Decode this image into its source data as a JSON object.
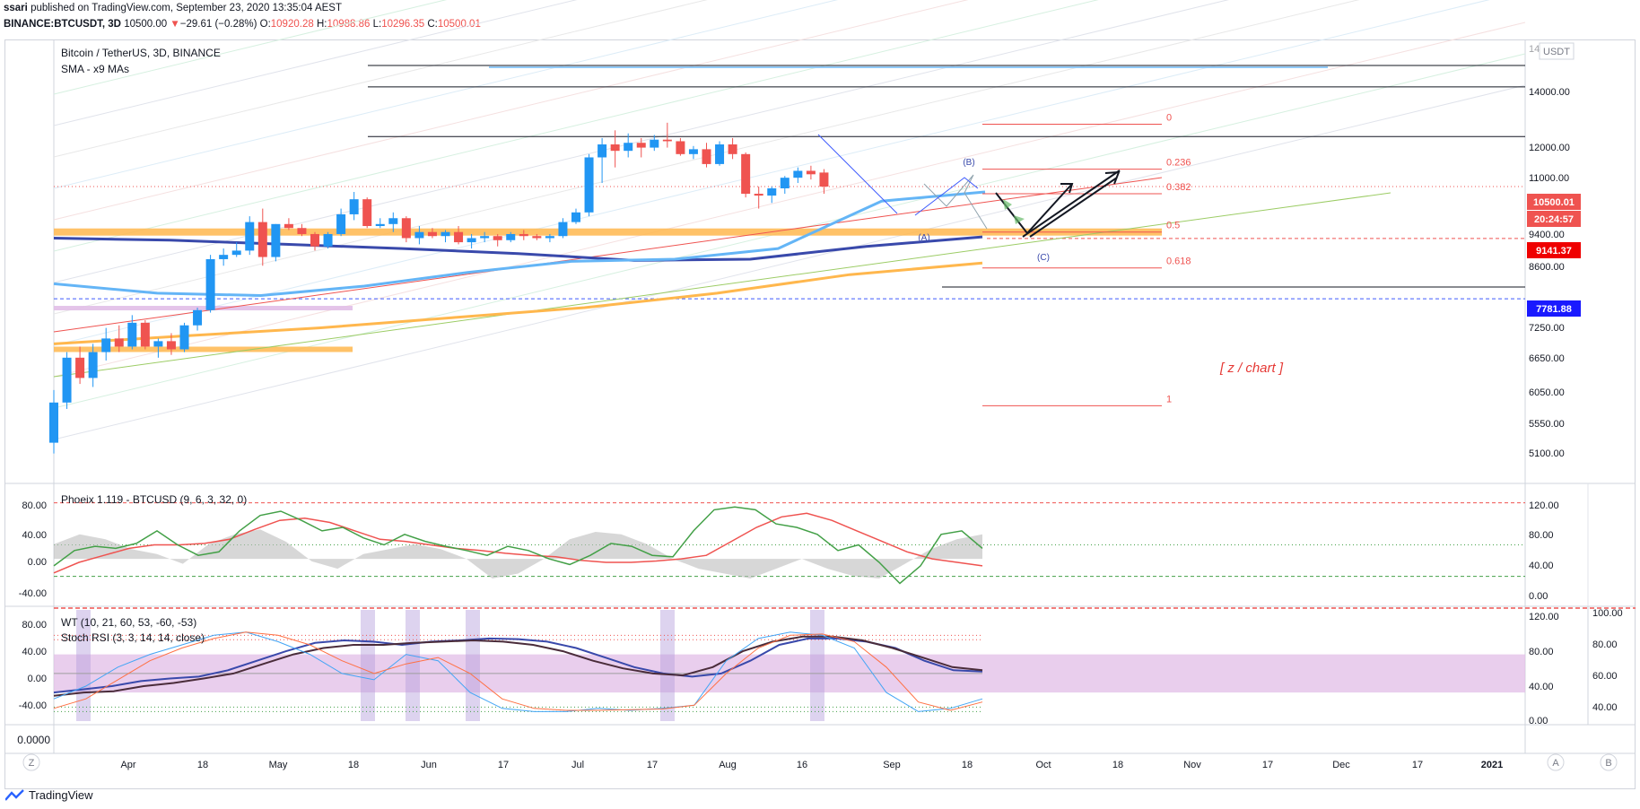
{
  "header": {
    "publisher": "ssari",
    "published_text": "published on TradingView.com, September 23, 2020 13:35:04 AEST",
    "symbol": "BINANCE:BTCUSDT, 3D",
    "last_price": "10500.00",
    "change_arrow": "▼",
    "change": "−29.61 (−0.28%)",
    "open_label": "O:",
    "open": "10920.28",
    "high_label": "H:",
    "high": "10988.86",
    "low_label": "L:",
    "low": "10296.35",
    "close_label": "C:",
    "close": "10500.01"
  },
  "main_pane": {
    "title": "Bitcoin / TetherUS, 3D, BINANCE",
    "indicator": "SMA - x9 MAs",
    "currency": "USDT",
    "annotation": "[ z / chart ]",
    "price_tags": [
      "10500.01",
      "20:24:57",
      "9141.37",
      "7781.88"
    ],
    "wave_labels": [
      "(A)",
      "(B)",
      "(C)"
    ]
  },
  "pane2": {
    "title": "Phoeix 1.119 - BTCUSD (9, 6, 3, 32, 0)"
  },
  "pane3": {
    "title": "WT (10, 21, 60, 53, -60, -53)",
    "subtitle": "Stoch RSI (3, 3, 14, 14, close)"
  },
  "pane4": {
    "label": "0.0000"
  },
  "time_axis": {
    "left_button": "Z",
    "right_button_a": "A",
    "right_button_b": "B"
  },
  "footer": {
    "brand": "TradingView"
  },
  "colors": {
    "up": "#2196f3",
    "down": "#ef5350",
    "orange": "#ffb74d",
    "navy": "#3949ab",
    "lightblue": "#64b5f6"
  },
  "chart_data": [
    {
      "type": "candlestick",
      "title": "Bitcoin / TetherUS, 3D, BINANCE",
      "x_tick_labels": [
        "Apr",
        "18",
        "May",
        "18",
        "Jun",
        "17",
        "Jul",
        "17",
        "Aug",
        "16",
        "Sep",
        "18",
        "Oct",
        "18",
        "Nov",
        "17",
        "Dec",
        "17",
        "2021"
      ],
      "y_tick_labels": [
        "14000.00",
        "12000.00",
        "11000.00",
        "9400.00",
        "8600.00",
        "7250.00",
        "6650.00",
        "6050.00",
        "5550.00",
        "5100.00"
      ],
      "ylim": [
        4800,
        15400
      ],
      "ohlc": [
        [
          5300,
          6100,
          5150,
          5900
        ],
        [
          5900,
          6750,
          5800,
          6650
        ],
        [
          6650,
          6850,
          6200,
          6300
        ],
        [
          6300,
          6900,
          6150,
          6750
        ],
        [
          6750,
          7200,
          6600,
          7000
        ],
        [
          7000,
          7250,
          6750,
          6850
        ],
        [
          6850,
          7450,
          6800,
          7300
        ],
        [
          7300,
          7350,
          6800,
          6850
        ],
        [
          6850,
          7000,
          6650,
          6950
        ],
        [
          6950,
          7100,
          6700,
          6800
        ],
        [
          6800,
          7300,
          6750,
          7250
        ],
        [
          7250,
          7600,
          7150,
          7550
        ],
        [
          7550,
          8750,
          7500,
          8650
        ],
        [
          8650,
          8900,
          8500,
          8750
        ],
        [
          8750,
          9050,
          8700,
          8850
        ],
        [
          8850,
          9700,
          8750,
          9550
        ],
        [
          9550,
          9900,
          8500,
          8700
        ],
        [
          8700,
          9500,
          8600,
          9500
        ],
        [
          9500,
          9650,
          9350,
          9400
        ],
        [
          9400,
          9500,
          9200,
          9250
        ],
        [
          9250,
          9300,
          8850,
          8950
        ],
        [
          8950,
          9300,
          8900,
          9250
        ],
        [
          9250,
          9900,
          9200,
          9750
        ],
        [
          9750,
          10350,
          9600,
          10150
        ],
        [
          10150,
          10200,
          9400,
          9450
        ],
        [
          9450,
          9650,
          9400,
          9500
        ],
        [
          9500,
          9800,
          9300,
          9650
        ],
        [
          9650,
          9700,
          9050,
          9150
        ],
        [
          9150,
          9450,
          9000,
          9300
        ],
        [
          9300,
          9400,
          9150,
          9200
        ],
        [
          9200,
          9350,
          9050,
          9300
        ],
        [
          9300,
          9450,
          9000,
          9050
        ],
        [
          9050,
          9250,
          8900,
          9150
        ],
        [
          9150,
          9300,
          9050,
          9200
        ],
        [
          9200,
          9250,
          8950,
          9100
        ],
        [
          9100,
          9300,
          9050,
          9250
        ],
        [
          9250,
          9350,
          9100,
          9200
        ],
        [
          9200,
          9250,
          9100,
          9150
        ],
        [
          9150,
          9250,
          9050,
          9200
        ],
        [
          9200,
          9650,
          9150,
          9550
        ],
        [
          9550,
          9900,
          9500,
          9800
        ],
        [
          9800,
          11450,
          9700,
          11350
        ],
        [
          11350,
          11950,
          10600,
          11750
        ],
        [
          11750,
          12200,
          11050,
          11550
        ],
        [
          11550,
          12100,
          11350,
          11800
        ],
        [
          11800,
          11950,
          11350,
          11650
        ],
        [
          11650,
          12050,
          11550,
          11900
        ],
        [
          11900,
          12450,
          11650,
          11850
        ],
        [
          11850,
          11950,
          11400,
          11450
        ],
        [
          11450,
          11700,
          11300,
          11600
        ],
        [
          11600,
          11800,
          11050,
          11150
        ],
        [
          11150,
          11850,
          11100,
          11750
        ],
        [
          11750,
          11950,
          11300,
          11450
        ],
        [
          11450,
          11500,
          10200,
          10300
        ],
        [
          10300,
          10500,
          9900,
          10250
        ],
        [
          10250,
          10500,
          10050,
          10450
        ],
        [
          10450,
          10800,
          10300,
          10750
        ],
        [
          10750,
          11050,
          10600,
          10950
        ],
        [
          10950,
          11100,
          10700,
          10850
        ],
        [
          10900,
          11000,
          10300,
          10500
        ]
      ],
      "moving_averages": [
        {
          "name": "MA navy",
          "values": [
            9150,
            9100,
            9000,
            8900,
            8780,
            8620,
            8650,
            8950,
            9180
          ]
        },
        {
          "name": "MA light blue",
          "values": [
            8100,
            7900,
            7850,
            8050,
            8350,
            8600,
            8650,
            8900,
            10100,
            10350
          ]
        },
        {
          "name": "MA orange",
          "values": [
            6900,
            7050,
            7200,
            7400,
            7600,
            7900,
            8300,
            8560
          ]
        }
      ],
      "horizontal_levels": [
        15100,
        13700,
        12000,
        7781.88
      ],
      "price_line": 10500.01,
      "support_line": 9141.37,
      "fibonacci": {
        "levels": [
          "0",
          "0.236",
          "0.382",
          "0.5",
          "0.618",
          "1"
        ],
        "prices": [
          12400,
          11000,
          10300,
          9300,
          8450,
          5850
        ]
      }
    },
    {
      "type": "line",
      "title": "Phoeix 1.119 - BTCUSD (9, 6, 3, 32, 0)",
      "y_tick_labels_left": [
        "80.00",
        "40.00",
        "0.00",
        "-40.00"
      ],
      "y_tick_labels_right": [
        "120.00",
        "80.00",
        "40.00",
        "0.00"
      ],
      "ylim": [
        -60,
        100
      ],
      "series": [
        {
          "name": "green",
          "values": [
            -10,
            12,
            18,
            15,
            22,
            40,
            20,
            5,
            10,
            40,
            62,
            68,
            55,
            40,
            45,
            30,
            20,
            35,
            25,
            18,
            12,
            5,
            18,
            12,
            0,
            -8,
            5,
            22,
            18,
            5,
            3,
            40,
            70,
            74,
            70,
            50,
            45,
            35,
            12,
            20,
            -5,
            -35,
            -10,
            35,
            40,
            15
          ]
        },
        {
          "name": "red",
          "values": [
            -20,
            -5,
            5,
            15,
            20,
            20,
            22,
            28,
            42,
            55,
            58,
            52,
            40,
            28,
            25,
            20,
            15,
            12,
            8,
            5,
            3,
            -2,
            -5,
            -5,
            -3,
            0,
            5,
            25,
            45,
            60,
            65,
            55,
            40,
            25,
            10,
            0,
            -5,
            -10
          ]
        },
        {
          "name": "grey histogram",
          "values": [
            30,
            50,
            40,
            20,
            10,
            -10,
            30,
            50,
            60,
            35,
            -5,
            -20,
            10,
            20,
            30,
            20,
            0,
            -40,
            -30,
            0,
            40,
            55,
            50,
            30,
            0,
            -20,
            -30,
            -40,
            -20,
            0,
            -20,
            -35,
            -40,
            -10,
            20,
            40,
            50
          ]
        }
      ],
      "levels": [
        80,
        20,
        -25
      ]
    },
    {
      "type": "line",
      "title": "WT (10, 21, 60, 53, -60, -53)",
      "y_tick_labels_left": [
        "80.00",
        "40.00",
        "0.00",
        "-40.00"
      ],
      "y_tick_labels_right": [
        "120.00",
        "80.00",
        "40.00",
        "0.00"
      ],
      "y_tick_labels_far_right": [
        "100.00",
        "80.00",
        "60.00",
        "40.00"
      ],
      "ylim": [
        -75,
        100
      ],
      "series": [
        {
          "name": "wt blue",
          "values": [
            -30,
            -25,
            -20,
            -12,
            -8,
            -5,
            5,
            20,
            35,
            48,
            52,
            50,
            45,
            50,
            52,
            55,
            54,
            50,
            40,
            25,
            10,
            0,
            -5,
            0,
            20,
            45,
            55,
            55,
            50,
            40,
            20,
            5,
            3
          ]
        },
        {
          "name": "wt black",
          "values": [
            -35,
            -30,
            -28,
            -20,
            -15,
            -8,
            0,
            15,
            30,
            40,
            45,
            45,
            48,
            50,
            52,
            50,
            45,
            35,
            20,
            8,
            0,
            -3,
            10,
            35,
            50,
            58,
            58,
            52,
            40,
            25,
            10,
            5
          ]
        },
        {
          "name": "stoch k",
          "values": [
            -40,
            -20,
            10,
            30,
            45,
            60,
            65,
            50,
            30,
            0,
            -10,
            30,
            20,
            -30,
            -55,
            -60,
            -60,
            -55,
            -58,
            -55,
            -50,
            20,
            55,
            65,
            60,
            40,
            -30,
            -60,
            -55,
            -40
          ]
        },
        {
          "name": "stoch d",
          "values": [
            -55,
            -40,
            -10,
            20,
            40,
            55,
            65,
            60,
            45,
            20,
            0,
            15,
            25,
            0,
            -40,
            -55,
            -58,
            -58,
            -57,
            -56,
            -50,
            0,
            40,
            60,
            62,
            50,
            10,
            -45,
            -58,
            -45
          ]
        }
      ],
      "levels": [
        60,
        53,
        -53,
        -60
      ]
    }
  ]
}
